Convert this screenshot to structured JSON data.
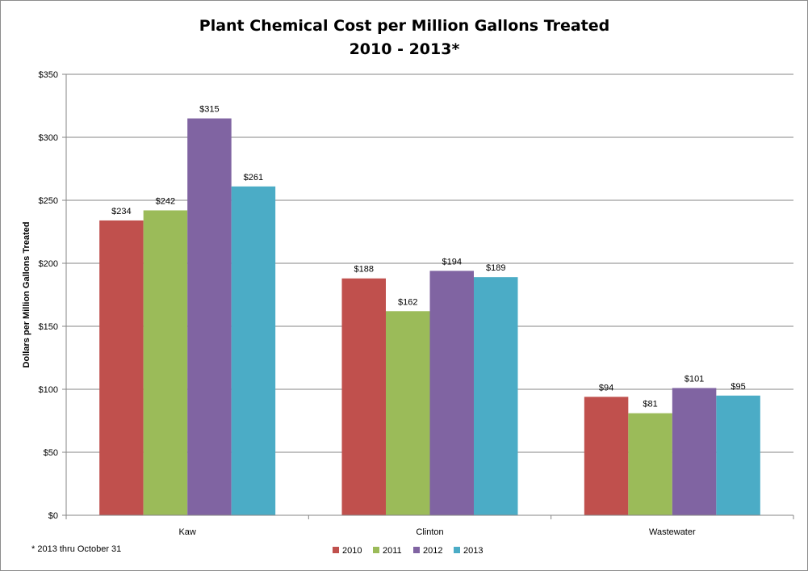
{
  "chart_data": {
    "type": "bar",
    "title": "Plant Chemical Cost per Million Gallons Treated",
    "subtitle": "2010 - 2013*",
    "ylabel": "Dollars per Million Gallons Treated",
    "xlabel": "",
    "categories": [
      "Kaw",
      "Clinton",
      "Wastewater"
    ],
    "series": [
      {
        "name": "2010",
        "color": "#C0504D",
        "values": [
          234,
          188,
          94
        ],
        "labels": [
          "$234",
          "$188",
          "$94"
        ]
      },
      {
        "name": "2011",
        "color": "#9BBB59",
        "values": [
          242,
          162,
          81
        ],
        "labels": [
          "$242",
          "$162",
          "$81"
        ]
      },
      {
        "name": "2012",
        "color": "#8064A2",
        "values": [
          315,
          194,
          101
        ],
        "labels": [
          "$315",
          "$194",
          "$101"
        ]
      },
      {
        "name": "2013",
        "color": "#4BACC6",
        "values": [
          261,
          189,
          95
        ],
        "labels": [
          "$261",
          "$189",
          "$95"
        ]
      }
    ],
    "ylim": [
      0,
      350
    ],
    "yticks": [
      0,
      50,
      100,
      150,
      200,
      250,
      300,
      350
    ],
    "ytick_labels": [
      "$0",
      "$50",
      "$100",
      "$150",
      "$200",
      "$250",
      "$300",
      "$350"
    ],
    "grid": "horizontal",
    "legend_position": "bottom",
    "footnote": "* 2013 thru October 31"
  }
}
